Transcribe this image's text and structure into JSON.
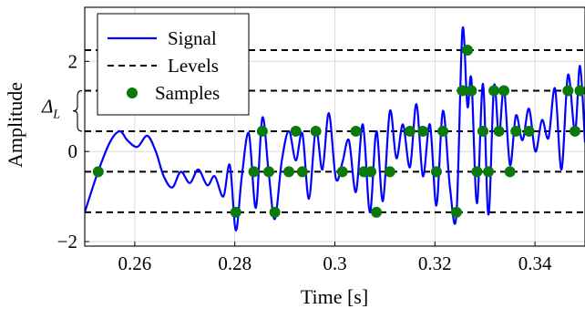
{
  "chart_data": {
    "type": "line",
    "xlabel": "Time [s]",
    "ylabel": "Amplitude",
    "xlim": [
      0.25,
      0.35
    ],
    "ylim": [
      -2.1,
      3.2
    ],
    "xticks": [
      0.26,
      0.28,
      0.3,
      0.32,
      0.34
    ],
    "xtick_labels": [
      "0.26",
      "0.28",
      "0.3",
      "0.32",
      "0.34"
    ],
    "yticks": [
      -2,
      0,
      2
    ],
    "ytick_labels": [
      "−2",
      "0",
      "2"
    ],
    "grid": true,
    "legend_position": "top-left",
    "annotation": {
      "label": "Δ_L",
      "main": "Δ",
      "sub": "L",
      "from": 0.45,
      "to": 1.35
    },
    "levels": [
      -1.35,
      -0.45,
      0.45,
      1.35,
      2.25
    ],
    "series": [
      {
        "name": "Signal",
        "kind": "line",
        "color": "#0000ff",
        "x": [
          0.25,
          0.2525,
          0.255,
          0.257,
          0.2585,
          0.2605,
          0.2625,
          0.2642,
          0.2658,
          0.2675,
          0.2692,
          0.271,
          0.2727,
          0.2745,
          0.276,
          0.2777,
          0.279,
          0.2802,
          0.2814,
          0.2828,
          0.2842,
          0.2855,
          0.2868,
          0.288,
          0.2894,
          0.2908,
          0.2922,
          0.2935,
          0.2948,
          0.2962,
          0.2975,
          0.2988,
          0.3002,
          0.3015,
          0.3028,
          0.3042,
          0.3056,
          0.307,
          0.3083,
          0.3096,
          0.311,
          0.3123,
          0.3136,
          0.315,
          0.3163,
          0.3176,
          0.319,
          0.3203,
          0.3216,
          0.323,
          0.3243,
          0.3255,
          0.3265,
          0.3273,
          0.3284,
          0.3296,
          0.3307,
          0.3318,
          0.3328,
          0.3338,
          0.335,
          0.3362,
          0.3375,
          0.3388,
          0.3401,
          0.3414,
          0.3427,
          0.344,
          0.3453,
          0.3466,
          0.348,
          0.349,
          0.35
        ],
        "y": [
          -1.35,
          -0.5,
          0.2,
          0.45,
          0.25,
          0.1,
          0.35,
          0.0,
          -0.55,
          -0.8,
          -0.45,
          -0.7,
          -0.4,
          -0.75,
          -0.55,
          -1.0,
          -0.3,
          -1.75,
          -0.55,
          0.4,
          -1.25,
          0.75,
          -0.5,
          -1.5,
          -0.2,
          0.45,
          -0.2,
          0.4,
          -1.05,
          0.5,
          -0.4,
          0.85,
          -0.6,
          -0.25,
          0.25,
          -0.9,
          0.6,
          -1.35,
          0.45,
          -1.1,
          0.9,
          -0.15,
          0.6,
          -0.35,
          1.05,
          -0.55,
          0.6,
          -1.2,
          0.9,
          -0.8,
          -1.4,
          2.7,
          1.0,
          1.6,
          -1.15,
          1.5,
          -1.4,
          1.45,
          0.35,
          1.4,
          -0.3,
          0.8,
          0.25,
          0.95,
          0.0,
          0.7,
          0.3,
          1.4,
          -0.4,
          1.7,
          0.45,
          1.9,
          0.2
        ]
      },
      {
        "name": "Levels",
        "kind": "dashed"
      },
      {
        "name": "Samples",
        "kind": "scatter",
        "color": "#0a7a0a",
        "points": [
          [
            0.2527,
            -0.45
          ],
          [
            0.2802,
            -1.35
          ],
          [
            0.2838,
            -0.45
          ],
          [
            0.2855,
            0.45
          ],
          [
            0.2868,
            -0.45
          ],
          [
            0.288,
            -1.35
          ],
          [
            0.2908,
            -0.45
          ],
          [
            0.2922,
            0.45
          ],
          [
            0.2935,
            -0.45
          ],
          [
            0.2962,
            0.45
          ],
          [
            0.3015,
            -0.45
          ],
          [
            0.3042,
            0.45
          ],
          [
            0.3058,
            -0.45
          ],
          [
            0.3072,
            -0.45
          ],
          [
            0.3083,
            -1.35
          ],
          [
            0.311,
            -0.45
          ],
          [
            0.315,
            0.45
          ],
          [
            0.3176,
            0.45
          ],
          [
            0.3203,
            -0.45
          ],
          [
            0.3216,
            0.45
          ],
          [
            0.3243,
            -1.35
          ],
          [
            0.3255,
            1.35
          ],
          [
            0.3265,
            2.25
          ],
          [
            0.3273,
            1.35
          ],
          [
            0.3284,
            -0.45
          ],
          [
            0.3296,
            0.45
          ],
          [
            0.3307,
            -0.45
          ],
          [
            0.3318,
            1.35
          ],
          [
            0.3328,
            0.45
          ],
          [
            0.3338,
            1.35
          ],
          [
            0.335,
            -0.45
          ],
          [
            0.3362,
            0.45
          ],
          [
            0.3388,
            0.45
          ],
          [
            0.3466,
            1.35
          ],
          [
            0.348,
            0.45
          ],
          [
            0.349,
            1.35
          ]
        ]
      }
    ]
  }
}
